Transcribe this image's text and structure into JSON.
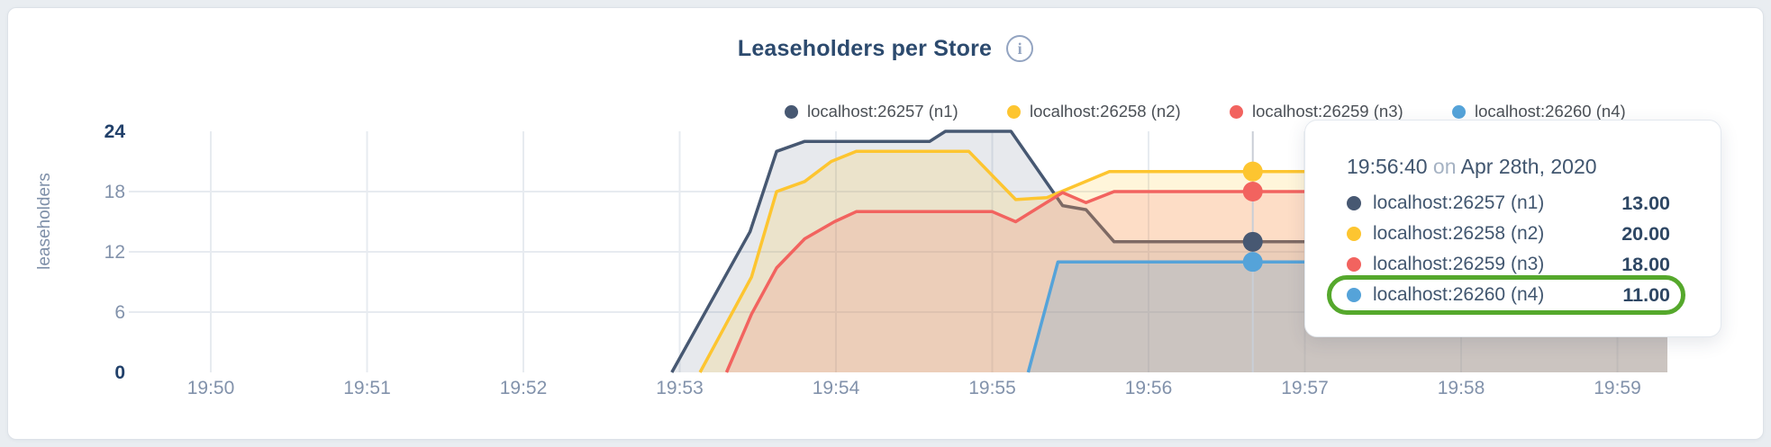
{
  "header": {
    "title": "Leaseholders per Store",
    "info_icon_glyph": "i"
  },
  "y_axis_label": "leaseholders",
  "chart_data": {
    "type": "area",
    "title": "Leaseholders per Store",
    "xlabel": "",
    "ylabel": "leaseholders",
    "ylim": [
      0,
      24
    ],
    "y_ticks": [
      0,
      6,
      12,
      18,
      24
    ],
    "y_ticks_bold": [
      0,
      24
    ],
    "x_tick_labels": [
      "19:50",
      "19:51",
      "19:52",
      "19:53",
      "19:54",
      "19:55",
      "19:56",
      "19:57",
      "19:58",
      "19:59"
    ],
    "x_unit": "minutes after 19:50",
    "grid": true,
    "legend_position": "top",
    "series": [
      {
        "name": "localhost:26257 (n1)",
        "color": "#475872",
        "fill_opacity": 0.13,
        "points": [
          [
            2.95,
            0
          ],
          [
            3.45,
            14
          ],
          [
            3.62,
            22
          ],
          [
            3.8,
            23
          ],
          [
            4.6,
            23
          ],
          [
            4.7,
            24
          ],
          [
            5.12,
            24
          ],
          [
            5.45,
            16.6
          ],
          [
            5.6,
            16.2
          ],
          [
            5.78,
            13
          ],
          [
            9.32,
            13
          ]
        ]
      },
      {
        "name": "localhost:26258 (n2)",
        "color": "#fdc530",
        "fill_opacity": 0.18,
        "points": [
          [
            3.13,
            0
          ],
          [
            3.46,
            9.5
          ],
          [
            3.62,
            18
          ],
          [
            3.8,
            19
          ],
          [
            3.97,
            21
          ],
          [
            4.13,
            22
          ],
          [
            4.85,
            22
          ],
          [
            5.15,
            17.2
          ],
          [
            5.35,
            17.4
          ],
          [
            5.75,
            20
          ],
          [
            9.32,
            20
          ]
        ]
      },
      {
        "name": "localhost:26259 (n3)",
        "color": "#f2635f",
        "fill_opacity": 0.16,
        "points": [
          [
            3.3,
            0
          ],
          [
            3.46,
            5.8
          ],
          [
            3.62,
            10.4
          ],
          [
            3.8,
            13.3
          ],
          [
            3.99,
            15
          ],
          [
            4.13,
            16
          ],
          [
            5.0,
            16
          ],
          [
            5.15,
            15
          ],
          [
            5.45,
            17.9
          ],
          [
            5.6,
            16.9
          ],
          [
            5.78,
            18
          ],
          [
            9.32,
            18
          ]
        ]
      },
      {
        "name": "localhost:26260 (n4)",
        "color": "#55a3d9",
        "fill_opacity": 0.22,
        "points": [
          [
            5.23,
            0
          ],
          [
            5.42,
            11
          ],
          [
            9.32,
            11
          ]
        ]
      }
    ],
    "hover": {
      "time_label": "19:56:40",
      "t_minutes_after_1950": 6.667,
      "values": [
        13,
        20,
        18,
        11
      ]
    }
  },
  "legend": {
    "items": [
      {
        "label": "localhost:26257 (n1)",
        "color": "#475872"
      },
      {
        "label": "localhost:26258 (n2)",
        "color": "#fdc530"
      },
      {
        "label": "localhost:26259 (n3)",
        "color": "#f2635f"
      },
      {
        "label": "localhost:26260 (n4)",
        "color": "#55a3d9"
      }
    ]
  },
  "tooltip": {
    "time": "19:56:40",
    "connector": "on",
    "date": "Apr 28th, 2020",
    "rows": [
      {
        "label": "localhost:26257 (n1)",
        "value": "13.00",
        "color": "#475872"
      },
      {
        "label": "localhost:26258 (n2)",
        "value": "20.00",
        "color": "#fdc530"
      },
      {
        "label": "localhost:26259 (n3)",
        "value": "18.00",
        "color": "#f2635f"
      },
      {
        "label": "localhost:26260 (n4)",
        "value": "11.00",
        "color": "#55a3d9"
      }
    ],
    "highlight": {
      "row_index": 3,
      "color": "#55a82c"
    }
  }
}
